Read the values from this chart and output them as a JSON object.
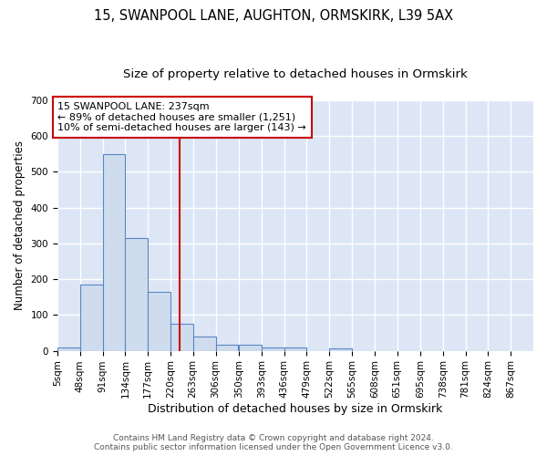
{
  "title": "15, SWANPOOL LANE, AUGHTON, ORMSKIRK, L39 5AX",
  "subtitle": "Size of property relative to detached houses in Ormskirk",
  "xlabel": "Distribution of detached houses by size in Ormskirk",
  "ylabel": "Number of detached properties",
  "bin_edges": [
    5,
    48,
    91,
    134,
    177,
    220,
    263,
    306,
    350,
    393,
    436,
    479,
    522,
    565,
    608,
    651,
    695,
    738,
    781,
    824,
    867
  ],
  "bar_heights": [
    8,
    185,
    550,
    315,
    165,
    75,
    40,
    17,
    17,
    10,
    10,
    0,
    7,
    0,
    0,
    0,
    0,
    0,
    0,
    0
  ],
  "bar_color": "#cfdcee",
  "bar_edge_color": "#5b87c5",
  "property_size": 237,
  "red_line_color": "#cc0000",
  "annotation_text": "15 SWANPOOL LANE: 237sqm\n← 89% of detached houses are smaller (1,251)\n10% of semi-detached houses are larger (143) →",
  "annotation_box_color": "#ffffff",
  "annotation_border_color": "#cc0000",
  "footer_text": "Contains HM Land Registry data © Crown copyright and database right 2024.\nContains public sector information licensed under the Open Government Licence v3.0.",
  "ylim": [
    0,
    700
  ],
  "yticks": [
    0,
    100,
    200,
    300,
    400,
    500,
    600,
    700
  ],
  "background_color": "#dce6f5",
  "grid_color": "#ffffff",
  "fig_background": "#ffffff",
  "title_fontsize": 10.5,
  "subtitle_fontsize": 9.5,
  "xlabel_fontsize": 9,
  "ylabel_fontsize": 8.5,
  "tick_fontsize": 7.5,
  "annotation_fontsize": 8,
  "footer_fontsize": 6.5
}
